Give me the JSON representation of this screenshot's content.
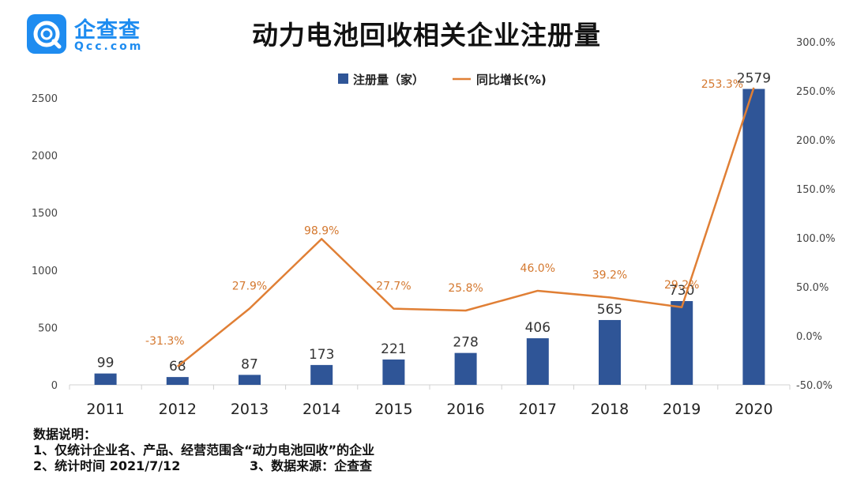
{
  "brand": {
    "name_cn": "企查查",
    "name_en": "Qcc.com",
    "brand_color": "#1e8cf0"
  },
  "chart_data": {
    "type": "bar",
    "title": "动力电池回收相关企业注册量",
    "categories": [
      "2011",
      "2012",
      "2013",
      "2014",
      "2015",
      "2016",
      "2017",
      "2018",
      "2019",
      "2020"
    ],
    "series": [
      {
        "name": "注册量（家）",
        "type": "bar",
        "axis": "left",
        "color": "#2f5597",
        "values": [
          99,
          68,
          87,
          173,
          221,
          278,
          406,
          565,
          730,
          2579
        ],
        "labels": [
          "99",
          "68",
          "87",
          "173",
          "221",
          "278",
          "406",
          "565",
          "730",
          "2579"
        ]
      },
      {
        "name": "同比增长(%)",
        "type": "line",
        "axis": "right",
        "color": "#e07f35",
        "values": [
          null,
          -31.3,
          27.9,
          98.9,
          27.7,
          25.8,
          46.0,
          39.2,
          29.2,
          253.3
        ],
        "labels": [
          null,
          "-31.3%",
          "27.9%",
          "98.9%",
          "27.7%",
          "25.8%",
          "46.0%",
          "39.2%",
          "29.2%",
          "253.3%"
        ]
      }
    ],
    "y_left": {
      "ylim": [
        0,
        2500
      ],
      "ticks": [
        "0",
        "500",
        "1000",
        "1500",
        "2000",
        "2500"
      ]
    },
    "y_right": {
      "ylim": [
        -50,
        300
      ],
      "ticks": [
        "-50.0%",
        "0.0%",
        "50.0%",
        "100.0%",
        "150.0%",
        "200.0%",
        "250.0%",
        "300.0%"
      ]
    },
    "grid": false,
    "legend": "top-center"
  },
  "notes": {
    "heading": "数据说明：",
    "line1": "1、仅统计企业名、产品、经营范围含“动力电池回收”的企业",
    "line2a": "2、统计时间 2021/7/12",
    "line2b": "3、数据来源：企查查"
  }
}
